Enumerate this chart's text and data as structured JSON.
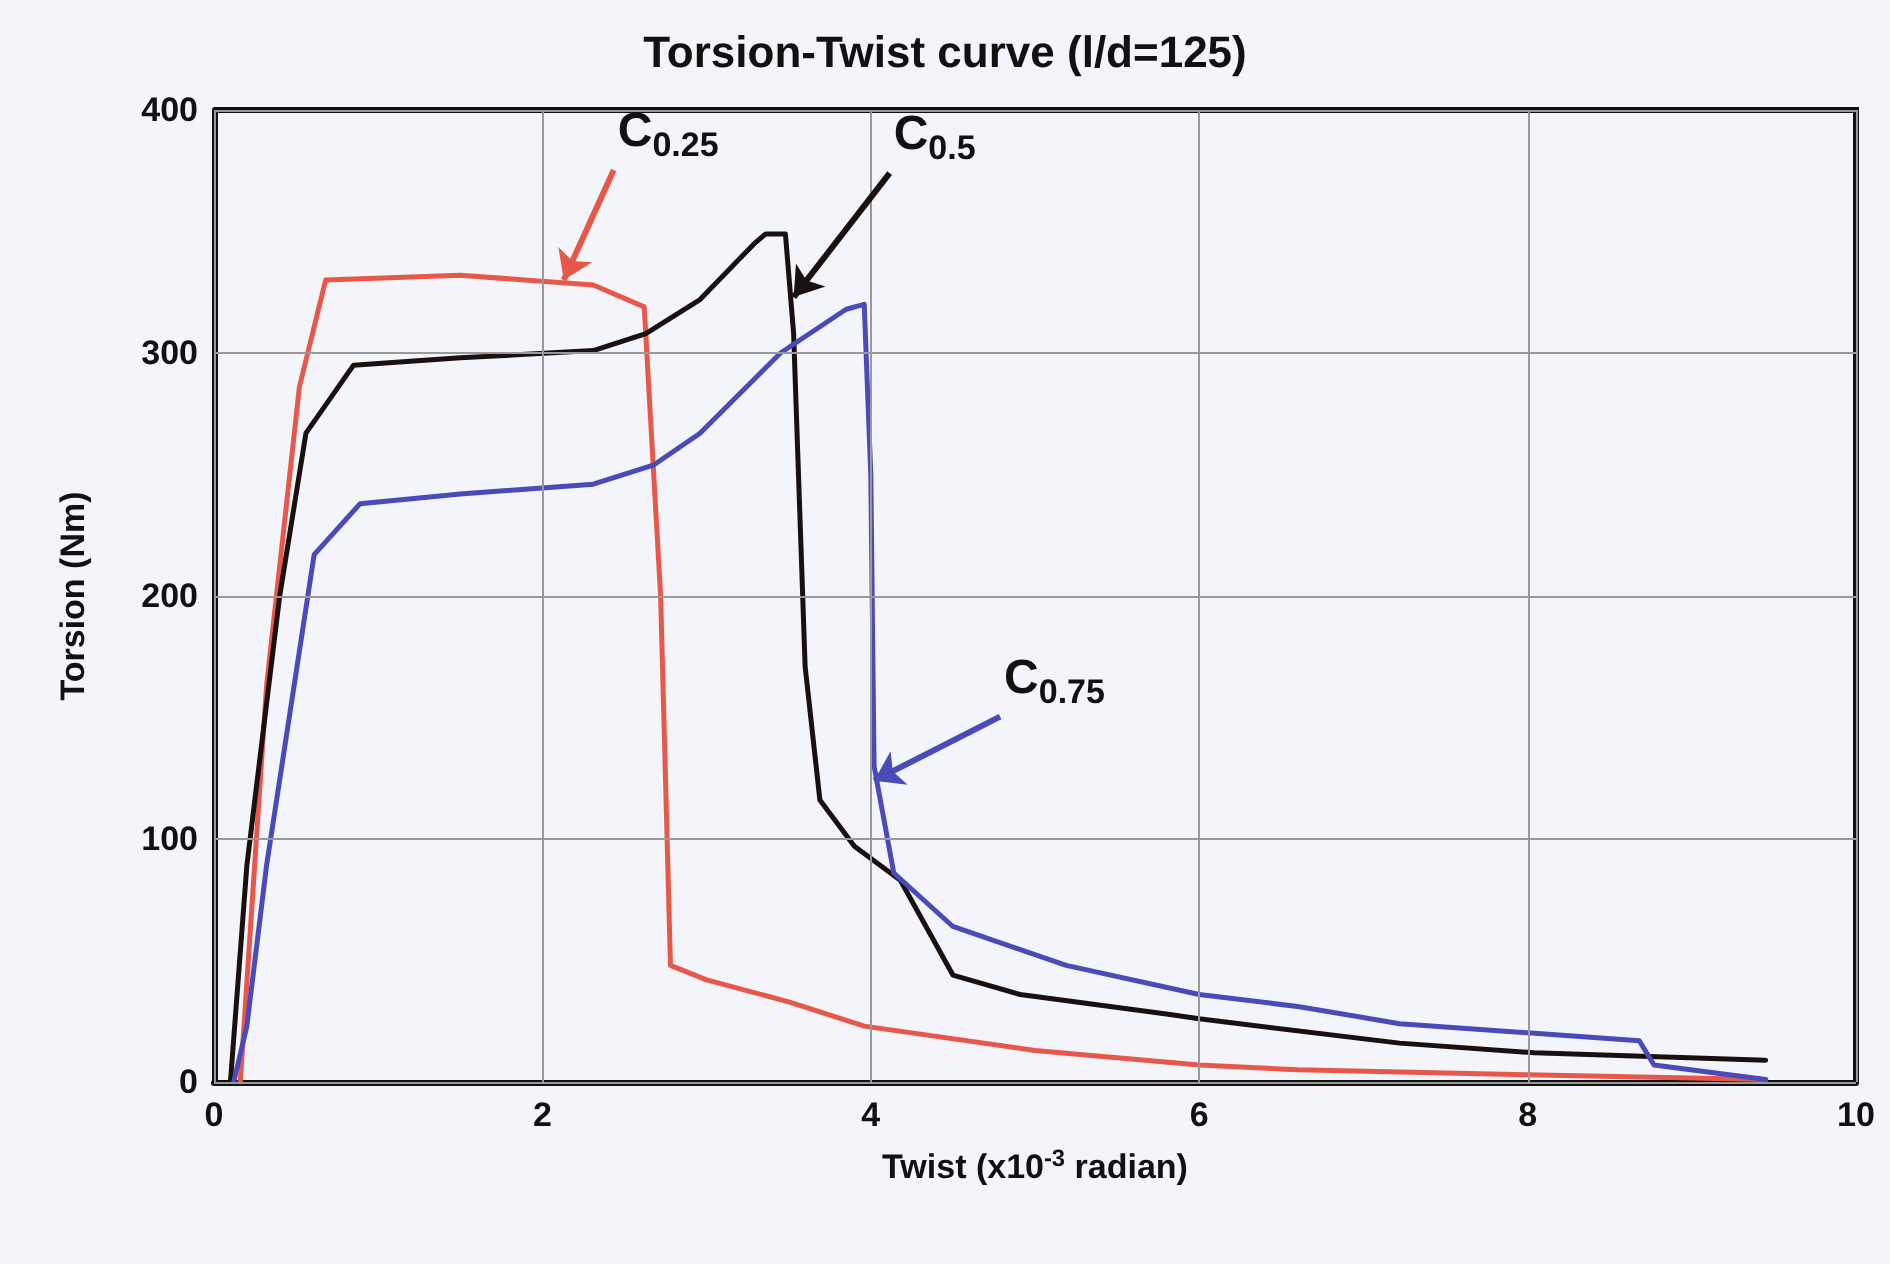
{
  "chart_data": {
    "type": "line",
    "title": "Torsion-Twist curve (l/d=125)",
    "xlabel": "Twist (x10$^{-3}$ radian)",
    "ylabel": "Torsion (Nm)",
    "xlim": [
      0,
      10
    ],
    "xticks": [
      0,
      2,
      4,
      6,
      8,
      10
    ],
    "ylim": [
      0,
      400
    ],
    "yticks": [
      0,
      100,
      200,
      300,
      400
    ],
    "grid": true,
    "marker": "none",
    "line_style": "solid",
    "series": [
      {
        "color": "#e8584a",
        "x": [
          0.16,
          0.32,
          0.52,
          0.68,
          1.5,
          2.31,
          2.62,
          2.72,
          2.78,
          3.0,
          3.5,
          3.96,
          5.0,
          6.0,
          6.6,
          8.0,
          9.45
        ],
        "values": [
          0,
          163,
          286,
          330,
          332,
          328,
          319,
          200,
          48,
          42,
          33,
          23,
          13,
          7,
          5,
          3,
          1
        ]
      },
      {
        "color": "#1a1010",
        "x": [
          0.1,
          0.2,
          0.4,
          0.56,
          0.85,
          1.5,
          2.31,
          2.63,
          2.96,
          3.29,
          3.36,
          3.48,
          3.53,
          3.6,
          3.69,
          3.9,
          4.18,
          4.5,
          4.91,
          5.8,
          6.0,
          7.22,
          8.04,
          9.45
        ],
        "values": [
          0,
          89,
          200,
          267,
          295,
          298,
          301,
          308,
          322,
          345,
          349,
          349,
          308,
          171,
          116,
          97,
          83,
          44,
          36,
          28,
          26,
          16,
          12,
          9
        ]
      },
      {
        "color": "#4a4ab8",
        "x": [
          0.12,
          0.2,
          0.32,
          0.61,
          0.89,
          1.5,
          2.31,
          2.68,
          2.96,
          3.45,
          3.85,
          3.96,
          4.0,
          4.02,
          4.14,
          4.5,
          5.19,
          6.0,
          6.61,
          7.22,
          8.68,
          8.77,
          9.45
        ],
        "values": [
          0,
          23,
          89,
          217,
          238,
          242,
          246,
          254,
          267,
          300,
          318,
          320,
          250,
          130,
          86,
          64,
          48,
          36,
          31,
          24,
          17,
          7,
          1
        ]
      }
    ],
    "annotations": [
      {
        "text": "C$_{0.25}$",
        "x": 2.13,
        "y": 330
      },
      {
        "text": "C$_{0.5}$",
        "x": 3.53,
        "y": 323
      },
      {
        "text": "C$_{0.75}$",
        "x": 4.02,
        "y": 124
      }
    ]
  }
}
